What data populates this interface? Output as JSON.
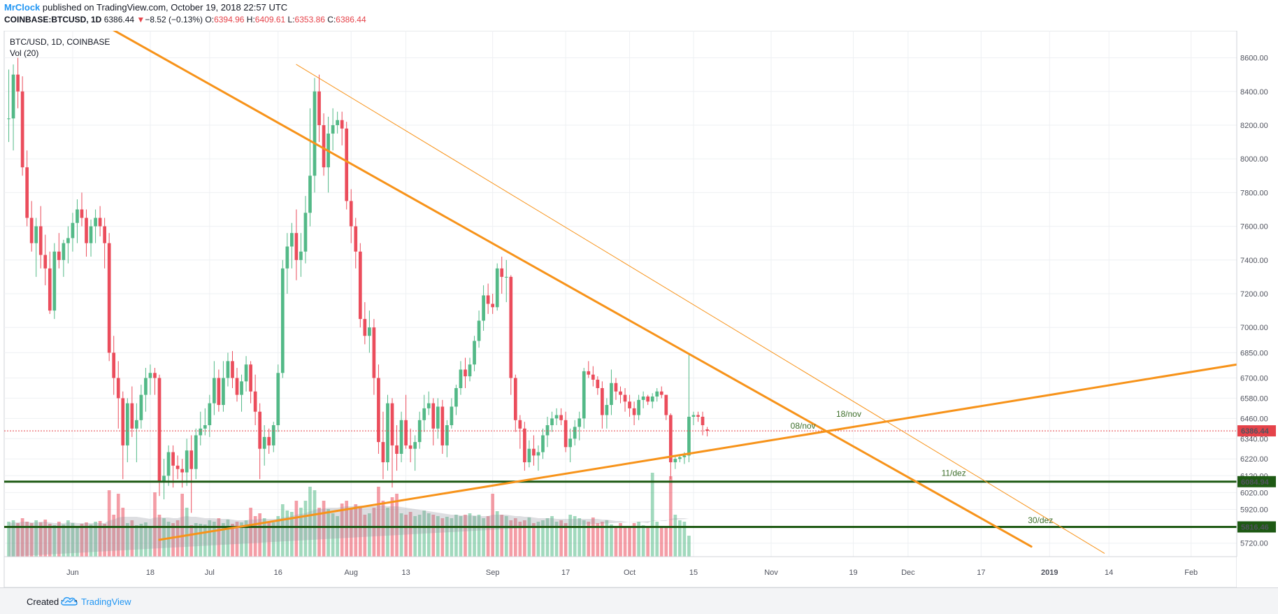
{
  "header": {
    "author": "MrClock",
    "published_text": "published on TradingView.com, October 19, 2018 22:57 UTC",
    "symbol": "COINBASE:BTCUSD, 1D",
    "last": "6386.44",
    "arrow": "▼",
    "change": "−8.52 (−0.13%)",
    "o_label": "O:",
    "o_value": "6394.96",
    "h_label": "H:",
    "h_value": "6409.61",
    "l_label": "L:",
    "l_value": "6353.86",
    "c_label": "C:",
    "c_value": "6386.44"
  },
  "footer": {
    "created_with": "Created with",
    "brand": "TradingView"
  },
  "colors": {
    "up": "#53b987",
    "down": "#eb4d5c",
    "trend": "#f7931a",
    "support": "#1e5a14",
    "price_line": "#e5434a"
  },
  "chart_data": {
    "type": "candlestick",
    "title": "BTC/USD, 1D, COINBASE",
    "subtitle": "Vol (20)",
    "ylim": [
      5640,
      8760
    ],
    "xlim": [
      "2018-05-17",
      "2019-02-11"
    ],
    "grid": true,
    "y_ticks": [
      "8600.00",
      "8400.00",
      "8200.00",
      "8000.00",
      "7800.00",
      "7600.00",
      "7400.00",
      "7200.00",
      "7000.00",
      "6850.00",
      "6700.00",
      "6580.00",
      "6460.00",
      "6340.00",
      "6220.00",
      "6120.00",
      "6020.00",
      "5920.00",
      "5820.00",
      "5720.00"
    ],
    "x_ticks": [
      {
        "date": "2018-06-01",
        "label": "Jun"
      },
      {
        "date": "2018-06-18",
        "label": "18"
      },
      {
        "date": "2018-07-01",
        "label": "Jul"
      },
      {
        "date": "2018-07-16",
        "label": "16"
      },
      {
        "date": "2018-08-01",
        "label": "Aug"
      },
      {
        "date": "2018-08-13",
        "label": "13"
      },
      {
        "date": "2018-09-01",
        "label": "Sep"
      },
      {
        "date": "2018-09-17",
        "label": "17"
      },
      {
        "date": "2018-10-01",
        "label": "Oct"
      },
      {
        "date": "2018-10-15",
        "label": "15"
      },
      {
        "date": "2018-11-01",
        "label": "Nov"
      },
      {
        "date": "2018-11-19",
        "label": "19"
      },
      {
        "date": "2018-12-01",
        "label": "Dec"
      },
      {
        "date": "2018-12-17",
        "label": "17"
      },
      {
        "date": "2019-01-01",
        "label": "2019"
      },
      {
        "date": "2019-01-14",
        "label": "14"
      },
      {
        "date": "2019-02-01",
        "label": "Feb"
      }
    ],
    "start_date": "2018-05-18",
    "candles": [
      [
        8240,
        8530,
        8100,
        8240
      ],
      [
        8240,
        8560,
        8050,
        8500
      ],
      [
        8500,
        8600,
        8300,
        8400
      ],
      [
        8400,
        8490,
        7900,
        7950
      ],
      [
        7950,
        8050,
        7600,
        7650
      ],
      [
        7650,
        7750,
        7450,
        7500
      ],
      [
        7500,
        7650,
        7300,
        7600
      ],
      [
        7600,
        7720,
        7350,
        7430
      ],
      [
        7430,
        7550,
        7250,
        7350
      ],
      [
        7350,
        7450,
        7080,
        7100
      ],
      [
        7100,
        7500,
        7050,
        7450
      ],
      [
        7450,
        7560,
        7350,
        7400
      ],
      [
        7400,
        7520,
        7300,
        7500
      ],
      [
        7500,
        7600,
        7380,
        7530
      ],
      [
        7530,
        7680,
        7450,
        7620
      ],
      [
        7620,
        7760,
        7500,
        7700
      ],
      [
        7700,
        7800,
        7600,
        7650
      ],
      [
        7650,
        7700,
        7420,
        7500
      ],
      [
        7500,
        7640,
        7420,
        7600
      ],
      [
        7600,
        7700,
        7500,
        7650
      ],
      [
        7650,
        7720,
        7540,
        7600
      ],
      [
        7600,
        7650,
        7350,
        7500
      ],
      [
        7500,
        7560,
        6800,
        6850
      ],
      [
        6850,
        6950,
        6600,
        6700
      ],
      [
        6700,
        6800,
        6400,
        6580
      ],
      [
        6580,
        6620,
        6100,
        6300
      ],
      [
        6300,
        6580,
        6200,
        6550
      ],
      [
        6550,
        6650,
        6350,
        6400
      ],
      [
        6400,
        6550,
        6200,
        6450
      ],
      [
        6450,
        6660,
        6400,
        6600
      ],
      [
        6600,
        6760,
        6500,
        6700
      ],
      [
        6700,
        6780,
        6600,
        6730
      ],
      [
        6730,
        6760,
        6600,
        6700
      ],
      [
        6700,
        6720,
        6000,
        6080
      ],
      [
        6080,
        6220,
        5980,
        6120
      ],
      [
        6120,
        6300,
        6060,
        6260
      ],
      [
        6260,
        6300,
        6050,
        6180
      ],
      [
        6180,
        6240,
        6100,
        6160
      ],
      [
        6160,
        6220,
        6050,
        6140
      ],
      [
        6140,
        6340,
        6060,
        6270
      ],
      [
        6270,
        6360,
        5900,
        6160
      ],
      [
        6160,
        6400,
        6100,
        6360
      ],
      [
        6360,
        6500,
        6300,
        6400
      ],
      [
        6400,
        6520,
        6360,
        6420
      ],
      [
        6420,
        6600,
        6350,
        6550
      ],
      [
        6550,
        6800,
        6480,
        6700
      ],
      [
        6700,
        6750,
        6500,
        6540
      ],
      [
        6540,
        6800,
        6500,
        6700
      ],
      [
        6700,
        6850,
        6650,
        6800
      ],
      [
        6800,
        6860,
        6640,
        6700
      ],
      [
        6700,
        6760,
        6560,
        6600
      ],
      [
        6600,
        6720,
        6500,
        6680
      ],
      [
        6680,
        6830,
        6620,
        6780
      ],
      [
        6780,
        6800,
        6550,
        6620
      ],
      [
        6620,
        6720,
        6420,
        6500
      ],
      [
        6500,
        6550,
        6100,
        6280
      ],
      [
        6280,
        6420,
        6180,
        6350
      ],
      [
        6350,
        6400,
        6250,
        6300
      ],
      [
        6300,
        6440,
        6260,
        6420
      ],
      [
        6420,
        6780,
        6380,
        6730
      ],
      [
        6730,
        7400,
        6700,
        7350
      ],
      [
        7350,
        7560,
        7200,
        7480
      ],
      [
        7480,
        7620,
        7350,
        7560
      ],
      [
        7560,
        7700,
        7280,
        7400
      ],
      [
        7400,
        7560,
        7300,
        7450
      ],
      [
        7450,
        7780,
        7380,
        7680
      ],
      [
        7680,
        8300,
        7600,
        7900
      ],
      [
        7900,
        8480,
        7800,
        8400
      ],
      [
        8400,
        8500,
        8100,
        8200
      ],
      [
        8200,
        8270,
        7900,
        7950
      ],
      [
        7950,
        8250,
        7800,
        8150
      ],
      [
        8150,
        8300,
        8050,
        8200
      ],
      [
        8200,
        8280,
        8150,
        8230
      ],
      [
        8230,
        8280,
        8080,
        8180
      ],
      [
        8180,
        8220,
        7700,
        7750
      ],
      [
        7750,
        7820,
        7500,
        7600
      ],
      [
        7600,
        7650,
        7350,
        7450
      ],
      [
        7450,
        7500,
        7000,
        7050
      ],
      [
        7050,
        7150,
        6900,
        6950
      ],
      [
        6950,
        7100,
        6850,
        7000
      ],
      [
        7000,
        7050,
        6600,
        6700
      ],
      [
        6700,
        6780,
        6250,
        6320
      ],
      [
        6320,
        6500,
        6100,
        6200
      ],
      [
        6200,
        6600,
        6150,
        6550
      ],
      [
        6550,
        6580,
        6050,
        6300
      ],
      [
        6300,
        6420,
        6150,
        6250
      ],
      [
        6250,
        6500,
        6200,
        6450
      ],
      [
        6450,
        6600,
        6280,
        6300
      ],
      [
        6300,
        6400,
        6200,
        6280
      ],
      [
        6280,
        6360,
        6150,
        6320
      ],
      [
        6320,
        6500,
        6280,
        6450
      ],
      [
        6450,
        6600,
        6380,
        6520
      ],
      [
        6520,
        6620,
        6480,
        6550
      ],
      [
        6550,
        6580,
        6300,
        6400
      ],
      [
        6400,
        6580,
        6340,
        6530
      ],
      [
        6530,
        6570,
        6250,
        6300
      ],
      [
        6300,
        6450,
        6230,
        6420
      ],
      [
        6420,
        6580,
        6400,
        6530
      ],
      [
        6530,
        6660,
        6480,
        6640
      ],
      [
        6640,
        6800,
        6600,
        6750
      ],
      [
        6750,
        6820,
        6640,
        6710
      ],
      [
        6710,
        6820,
        6680,
        6780
      ],
      [
        6780,
        6950,
        6740,
        6920
      ],
      [
        6920,
        7100,
        6880,
        7040
      ],
      [
        7040,
        7250,
        6980,
        7190
      ],
      [
        7190,
        7260,
        7080,
        7140
      ],
      [
        7140,
        7200,
        7080,
        7120
      ],
      [
        7120,
        7380,
        7100,
        7350
      ],
      [
        7350,
        7420,
        7200,
        7300
      ],
      [
        7300,
        7400,
        7150,
        7300
      ],
      [
        7300,
        7310,
        6600,
        6700
      ],
      [
        6700,
        6720,
        6380,
        6450
      ],
      [
        6450,
        6480,
        6280,
        6400
      ],
      [
        6400,
        6440,
        6150,
        6200
      ],
      [
        6200,
        6330,
        6170,
        6280
      ],
      [
        6280,
        6360,
        6180,
        6240
      ],
      [
        6240,
        6300,
        6150,
        6260
      ],
      [
        6260,
        6400,
        6220,
        6360
      ],
      [
        6360,
        6470,
        6290,
        6420
      ],
      [
        6420,
        6500,
        6380,
        6460
      ],
      [
        6460,
        6520,
        6420,
        6480
      ],
      [
        6480,
        6520,
        6420,
        6450
      ],
      [
        6450,
        6500,
        6260,
        6290
      ],
      [
        6290,
        6400,
        6200,
        6340
      ],
      [
        6340,
        6450,
        6300,
        6410
      ],
      [
        6410,
        6500,
        6330,
        6460
      ],
      [
        6460,
        6760,
        6400,
        6740
      ],
      [
        6740,
        6800,
        6700,
        6720
      ],
      [
        6720,
        6770,
        6650,
        6690
      ],
      [
        6690,
        6710,
        6600,
        6640
      ],
      [
        6640,
        6680,
        6400,
        6480
      ],
      [
        6480,
        6580,
        6400,
        6540
      ],
      [
        6540,
        6750,
        6480,
        6670
      ],
      [
        6670,
        6700,
        6570,
        6620
      ],
      [
        6620,
        6650,
        6550,
        6600
      ],
      [
        6600,
        6640,
        6500,
        6560
      ],
      [
        6560,
        6600,
        6470,
        6520
      ],
      [
        6520,
        6560,
        6420,
        6480
      ],
      [
        6480,
        6600,
        6450,
        6570
      ],
      [
        6570,
        6620,
        6520,
        6590
      ],
      [
        6590,
        6600,
        6540,
        6560
      ],
      [
        6560,
        6610,
        6520,
        6590
      ],
      [
        6590,
        6640,
        6560,
        6620
      ],
      [
        6620,
        6650,
        6580,
        6600
      ],
      [
        6600,
        6600,
        6450,
        6480
      ],
      [
        6480,
        6490,
        6100,
        6200
      ],
      [
        6200,
        6240,
        6160,
        6220
      ],
      [
        6220,
        6240,
        6200,
        6230
      ],
      [
        6230,
        6260,
        6190,
        6240
      ],
      [
        6240,
        6840,
        6200,
        6470
      ],
      [
        6470,
        6500,
        6420,
        6480
      ],
      [
        6480,
        6500,
        6440,
        6470
      ],
      [
        6470,
        6500,
        6360,
        6420
      ],
      [
        6394.96,
        6409.61,
        6353.86,
        6386.44
      ]
    ],
    "volume": [
      50,
      52,
      48,
      55,
      50,
      48,
      52,
      49,
      53,
      47,
      45,
      50,
      46,
      52,
      48,
      44,
      47,
      49,
      46,
      50,
      51,
      47,
      95,
      60,
      90,
      70,
      48,
      52,
      45,
      47,
      49,
      44,
      92,
      60,
      55,
      50,
      48,
      52,
      90,
      70,
      45,
      48,
      47,
      46,
      52,
      50,
      55,
      48,
      53,
      47,
      50,
      49,
      52,
      70,
      58,
      62,
      55,
      50,
      49,
      58,
      75,
      66,
      64,
      80,
      70,
      80,
      100,
      95,
      70,
      80,
      68,
      62,
      58,
      76,
      80,
      70,
      75,
      72,
      60,
      62,
      70,
      100,
      80,
      70,
      85,
      90,
      62,
      60,
      64,
      58,
      60,
      66,
      62,
      60,
      58,
      55,
      57,
      55,
      60,
      58,
      60,
      62,
      58,
      60,
      55,
      58,
      90,
      65,
      60,
      58,
      52,
      55,
      50,
      52,
      56,
      48,
      50,
      52,
      55,
      58,
      50,
      52,
      48,
      60,
      58,
      55,
      52,
      50,
      56,
      48,
      50,
      52,
      46,
      42,
      48,
      44,
      42,
      48,
      50,
      45,
      44,
      120,
      50,
      42,
      44,
      115,
      60,
      52,
      50,
      30
    ],
    "volume_ma": [
      48,
      49,
      49,
      50,
      50,
      49,
      49,
      50,
      50,
      49,
      48,
      48,
      48,
      49,
      49,
      48,
      48,
      48,
      48,
      48,
      48,
      48,
      52,
      53,
      56,
      57,
      57,
      57,
      57,
      56,
      55,
      54,
      56,
      56,
      56,
      56,
      55,
      55,
      57,
      58,
      57,
      57,
      56,
      55,
      55,
      55,
      54,
      54,
      54,
      53,
      52,
      52,
      52,
      53,
      53,
      54,
      54,
      54,
      54,
      54,
      56,
      57,
      58,
      60,
      61,
      62,
      65,
      67,
      68,
      69,
      70,
      70,
      70,
      71,
      72,
      72,
      73,
      73,
      73,
      72,
      72,
      73,
      73,
      72,
      72,
      72,
      71,
      70,
      69,
      68,
      67,
      66,
      65,
      64,
      63,
      62,
      61,
      60,
      60,
      59,
      59,
      59,
      59,
      58,
      58,
      58,
      60,
      60,
      60,
      60,
      59,
      58,
      58,
      57,
      57,
      56,
      55,
      55,
      55,
      55,
      54,
      54,
      54,
      54,
      54,
      54,
      54,
      54,
      54,
      54,
      53,
      53,
      52,
      51,
      51,
      50,
      49,
      49,
      49,
      49,
      48,
      52,
      52,
      51,
      51,
      54,
      55,
      55,
      55,
      54
    ],
    "price_line": {
      "value": 6386.44,
      "label": "6386.44"
    },
    "support_lines": [
      {
        "value": 6084.94,
        "label": "6084.94"
      },
      {
        "value": 5816.46,
        "label": "5816.46"
      }
    ],
    "trend_lines": [
      {
        "name": "main-resistance",
        "from": [
          "2018-06-01",
          8900
        ],
        "to": [
          "2018-12-28",
          5700
        ],
        "width": 3
      },
      {
        "name": "thin-resistance",
        "from": [
          "2018-07-20",
          8560
        ],
        "to": [
          "2019-01-13",
          5660
        ],
        "width": 1
      },
      {
        "name": "rising-support",
        "from": [
          "2018-06-20",
          5740
        ],
        "to": [
          "2019-02-11",
          6780
        ],
        "width": 3
      }
    ],
    "annotations": [
      {
        "text": "08/nov",
        "date": "2018-11-08",
        "value": 6400
      },
      {
        "text": "18/nov",
        "date": "2018-11-18",
        "value": 6470
      },
      {
        "text": "11/dez",
        "date": "2018-12-11",
        "value": 6120
      },
      {
        "text": "30/dez",
        "date": "2018-12-30",
        "value": 5840
      }
    ]
  }
}
